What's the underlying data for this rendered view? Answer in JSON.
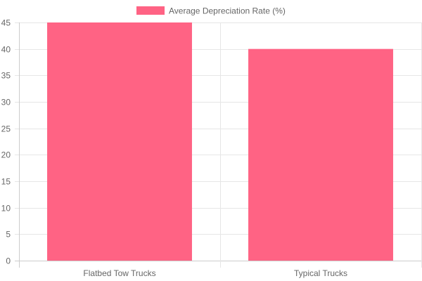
{
  "chart_data": {
    "type": "bar",
    "categories": [
      "Flatbed Tow Trucks",
      "Typical Trucks"
    ],
    "series": [
      {
        "name": "Average Depreciation Rate (%)",
        "values": [
          45,
          40
        ],
        "color": "#ff6384"
      }
    ],
    "ylim": [
      0,
      45
    ],
    "yticks": [
      0,
      5,
      10,
      15,
      20,
      25,
      30,
      35,
      40,
      45
    ],
    "grid": true,
    "legend_position": "top-center"
  }
}
